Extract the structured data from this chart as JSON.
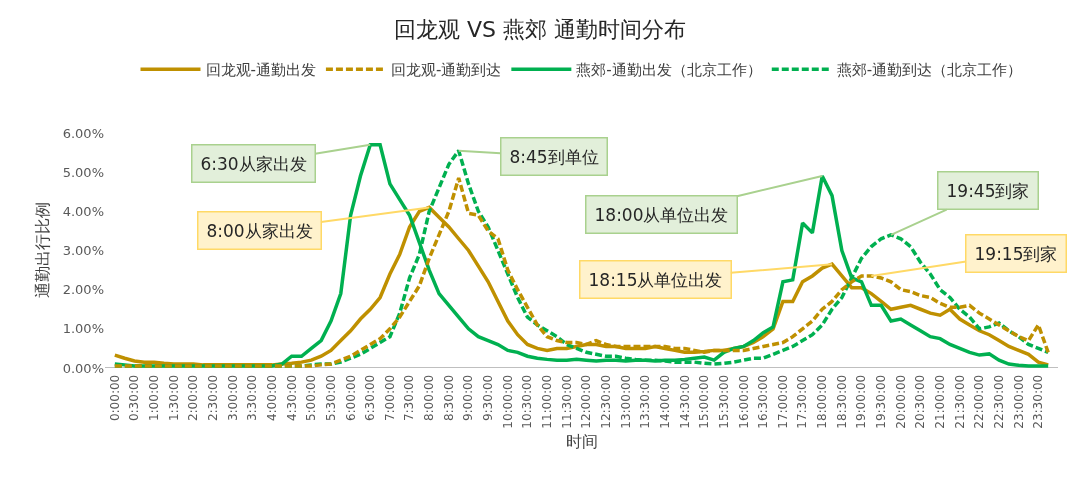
{
  "chart_data": {
    "type": "line",
    "title": "回龙观 VS 燕郊 通勤时间分布",
    "xlabel": "时间",
    "ylabel": "通勤出行比例",
    "x": [
      0,
      0.25,
      0.5,
      0.75,
      1,
      1.25,
      1.5,
      1.75,
      2,
      2.25,
      2.5,
      2.75,
      3,
      3.25,
      3.5,
      3.75,
      4,
      4.25,
      4.5,
      4.75,
      5,
      5.25,
      5.5,
      5.75,
      6,
      6.25,
      6.5,
      6.75,
      7,
      7.25,
      7.5,
      7.75,
      8,
      8.25,
      8.5,
      8.75,
      9,
      9.25,
      9.5,
      9.75,
      10,
      10.25,
      10.5,
      10.75,
      11,
      11.25,
      11.5,
      11.75,
      12,
      12.25,
      12.5,
      12.75,
      13,
      13.25,
      13.5,
      13.75,
      14,
      14.25,
      14.5,
      14.75,
      15,
      15.25,
      15.5,
      15.75,
      16,
      16.25,
      16.5,
      16.75,
      17,
      17.25,
      17.5,
      17.75,
      18,
      18.25,
      18.5,
      18.75,
      19,
      19.25,
      19.5,
      19.75,
      20,
      20.25,
      20.5,
      20.75,
      21,
      21.25,
      21.5,
      21.75,
      22,
      22.25,
      22.5,
      22.75,
      23,
      23.25,
      23.5,
      23.75
    ],
    "series": [
      {
        "name": "回龙观-通勤出发",
        "color": "#bf9000",
        "line_style": "solid",
        "values": [
          0.33,
          0.25,
          0.18,
          0.15,
          0.15,
          0.12,
          0.1,
          0.1,
          0.1,
          0.08,
          0.08,
          0.08,
          0.08,
          0.08,
          0.08,
          0.08,
          0.08,
          0.1,
          0.12,
          0.15,
          0.2,
          0.3,
          0.45,
          0.7,
          0.95,
          1.25,
          1.5,
          1.8,
          2.4,
          2.9,
          3.6,
          4.0,
          4.1,
          3.85,
          3.6,
          3.3,
          3.0,
          2.6,
          2.2,
          1.7,
          1.2,
          0.85,
          0.6,
          0.5,
          0.45,
          0.5,
          0.5,
          0.55,
          0.6,
          0.6,
          0.55,
          0.55,
          0.5,
          0.5,
          0.5,
          0.55,
          0.5,
          0.45,
          0.4,
          0.4,
          0.42,
          0.45,
          0.45,
          0.5,
          0.55,
          0.65,
          0.8,
          1.0,
          1.7,
          1.7,
          2.2,
          2.35,
          2.55,
          2.65,
          2.35,
          2.05,
          2.05,
          1.9,
          1.7,
          1.5,
          1.55,
          1.6,
          1.5,
          1.4,
          1.35,
          1.5,
          1.25,
          1.1,
          0.95,
          0.85,
          0.7,
          0.55,
          0.45,
          0.35,
          0.15,
          0.08
        ]
      },
      {
        "name": "回龙观-通勤到达",
        "color": "#bf9000",
        "line_style": "dashed",
        "values": [
          0.05,
          0.05,
          0.05,
          0.05,
          0.05,
          0.05,
          0.05,
          0.05,
          0.05,
          0.05,
          0.05,
          0.05,
          0.05,
          0.05,
          0.05,
          0.05,
          0.05,
          0.05,
          0.05,
          0.05,
          0.05,
          0.08,
          0.1,
          0.2,
          0.3,
          0.45,
          0.6,
          0.75,
          1.0,
          1.3,
          1.7,
          2.1,
          2.8,
          3.4,
          4.0,
          4.85,
          3.95,
          3.9,
          3.5,
          3.3,
          2.5,
          2.0,
          1.55,
          1.1,
          0.8,
          0.7,
          0.65,
          0.65,
          0.6,
          0.7,
          0.6,
          0.55,
          0.55,
          0.55,
          0.55,
          0.55,
          0.55,
          0.5,
          0.5,
          0.45,
          0.4,
          0.45,
          0.45,
          0.45,
          0.45,
          0.5,
          0.55,
          0.6,
          0.65,
          0.8,
          1.0,
          1.2,
          1.5,
          1.7,
          2.0,
          2.2,
          2.35,
          2.35,
          2.3,
          2.2,
          2.0,
          1.95,
          1.85,
          1.8,
          1.65,
          1.55,
          1.55,
          1.6,
          1.4,
          1.25,
          1.1,
          0.95,
          0.8,
          0.7,
          1.1,
          0.4
        ]
      },
      {
        "name": "燕郊-通勤出发（北京工作）",
        "color": "#00b050",
        "line_style": "solid",
        "values": [
          0.1,
          0.08,
          0.05,
          0.05,
          0.05,
          0.05,
          0.05,
          0.05,
          0.05,
          0.05,
          0.05,
          0.05,
          0.05,
          0.05,
          0.05,
          0.05,
          0.05,
          0.1,
          0.3,
          0.3,
          0.5,
          0.7,
          1.2,
          1.9,
          3.9,
          4.9,
          5.7,
          5.7,
          4.7,
          4.3,
          3.9,
          3.2,
          2.5,
          1.9,
          1.6,
          1.3,
          1.0,
          0.8,
          0.7,
          0.6,
          0.45,
          0.4,
          0.3,
          0.25,
          0.22,
          0.2,
          0.2,
          0.22,
          0.2,
          0.18,
          0.2,
          0.2,
          0.18,
          0.2,
          0.2,
          0.18,
          0.2,
          0.2,
          0.22,
          0.25,
          0.28,
          0.2,
          0.4,
          0.5,
          0.55,
          0.7,
          0.9,
          1.05,
          2.2,
          2.25,
          3.7,
          3.45,
          4.9,
          4.4,
          3.0,
          2.3,
          2.2,
          1.6,
          1.6,
          1.2,
          1.25,
          1.1,
          0.95,
          0.8,
          0.75,
          0.6,
          0.5,
          0.4,
          0.33,
          0.36,
          0.2,
          0.1,
          0.07,
          0.05,
          0.05,
          0.05
        ]
      },
      {
        "name": "燕郊-通勤到达（北京工作）",
        "color": "#00b050",
        "line_style": "dashed",
        "values": [
          0.05,
          0.05,
          0.05,
          0.05,
          0.05,
          0.05,
          0.05,
          0.05,
          0.05,
          0.05,
          0.05,
          0.05,
          0.05,
          0.05,
          0.05,
          0.05,
          0.05,
          0.05,
          0.05,
          0.05,
          0.08,
          0.1,
          0.1,
          0.15,
          0.25,
          0.35,
          0.5,
          0.65,
          0.8,
          1.4,
          2.3,
          2.9,
          4.0,
          4.6,
          5.2,
          5.55,
          4.7,
          4.0,
          3.6,
          3.0,
          2.4,
          1.8,
          1.3,
          1.1,
          0.95,
          0.8,
          0.6,
          0.5,
          0.4,
          0.35,
          0.3,
          0.3,
          0.25,
          0.22,
          0.2,
          0.2,
          0.18,
          0.15,
          0.15,
          0.15,
          0.12,
          0.1,
          0.12,
          0.15,
          0.2,
          0.25,
          0.25,
          0.35,
          0.45,
          0.55,
          0.7,
          0.85,
          1.1,
          1.5,
          1.8,
          2.3,
          2.8,
          3.1,
          3.3,
          3.4,
          3.3,
          3.1,
          2.7,
          2.4,
          2.0,
          1.8,
          1.5,
          1.3,
          1.0,
          1.05,
          1.15,
          0.95,
          0.8,
          0.6,
          0.5,
          0.4
        ]
      }
    ],
    "xlim": [
      -0.25,
      24
    ],
    "xticks": [
      {
        "value": 0,
        "label": "0:00:00"
      },
      {
        "value": 0.5,
        "label": "0:30:00"
      },
      {
        "value": 1,
        "label": "1:00:00"
      },
      {
        "value": 1.5,
        "label": "1:30:00"
      },
      {
        "value": 2,
        "label": "2:00:00"
      },
      {
        "value": 2.5,
        "label": "2:30:00"
      },
      {
        "value": 3,
        "label": "3:00:00"
      },
      {
        "value": 3.5,
        "label": "3:30:00"
      },
      {
        "value": 4,
        "label": "4:00:00"
      },
      {
        "value": 4.5,
        "label": "4:30:00"
      },
      {
        "value": 5,
        "label": "5:00:00"
      },
      {
        "value": 5.5,
        "label": "5:30:00"
      },
      {
        "value": 6,
        "label": "6:00:00"
      },
      {
        "value": 6.5,
        "label": "6:30:00"
      },
      {
        "value": 7,
        "label": "7:00:00"
      },
      {
        "value": 7.5,
        "label": "7:30:00"
      },
      {
        "value": 8,
        "label": "8:00:00"
      },
      {
        "value": 8.5,
        "label": "8:30:00"
      },
      {
        "value": 9,
        "label": "9:00:00"
      },
      {
        "value": 9.5,
        "label": "9:30:00"
      },
      {
        "value": 10,
        "label": "10:00:00"
      },
      {
        "value": 10.5,
        "label": "10:30:00"
      },
      {
        "value": 11,
        "label": "11:00:00"
      },
      {
        "value": 11.5,
        "label": "11:30:00"
      },
      {
        "value": 12,
        "label": "12:00:00"
      },
      {
        "value": 12.5,
        "label": "12:30:00"
      },
      {
        "value": 13,
        "label": "13:00:00"
      },
      {
        "value": 13.5,
        "label": "13:30:00"
      },
      {
        "value": 14,
        "label": "14:00:00"
      },
      {
        "value": 14.5,
        "label": "14:30:00"
      },
      {
        "value": 15,
        "label": "15:00:00"
      },
      {
        "value": 15.5,
        "label": "15:30:00"
      },
      {
        "value": 16,
        "label": "16:00:00"
      },
      {
        "value": 16.5,
        "label": "16:30:00"
      },
      {
        "value": 17,
        "label": "17:00:00"
      },
      {
        "value": 17.5,
        "label": "17:30:00"
      },
      {
        "value": 18,
        "label": "18:00:00"
      },
      {
        "value": 18.5,
        "label": "18:30:00"
      },
      {
        "value": 19,
        "label": "19:00:00"
      },
      {
        "value": 19.5,
        "label": "19:30:00"
      },
      {
        "value": 20,
        "label": "20:00:00"
      },
      {
        "value": 20.5,
        "label": "20:30:00"
      },
      {
        "value": 21,
        "label": "21:00:00"
      },
      {
        "value": 21.5,
        "label": "21:30:00"
      },
      {
        "value": 22,
        "label": "22:00:00"
      },
      {
        "value": 22.5,
        "label": "22:30:00"
      },
      {
        "value": 23,
        "label": "23:00:00"
      },
      {
        "value": 23.5,
        "label": "23:30:00"
      }
    ],
    "ylim": [
      0,
      6
    ],
    "yticks": [
      {
        "value": 0,
        "label": "0.00%"
      },
      {
        "value": 1,
        "label": "1.00%"
      },
      {
        "value": 2,
        "label": "2.00%"
      },
      {
        "value": 3,
        "label": "3.00%"
      },
      {
        "value": 4,
        "label": "4.00%"
      },
      {
        "value": 5,
        "label": "5.00%"
      },
      {
        "value": 6,
        "label": "6.00%"
      }
    ],
    "legend": "top",
    "marker": "none",
    "annotations": [
      {
        "text": "6:30从家出发",
        "x": 6.5,
        "y": 5.7
      },
      {
        "text": "8:00从家出发",
        "x": 8,
        "y": 4.1
      },
      {
        "text": "8:45到单位",
        "x": 8.75,
        "y": 5.55
      },
      {
        "text": "18:00从单位出发",
        "x": 18,
        "y": 4.9
      },
      {
        "text": "18:15从单位出发",
        "x": 18.25,
        "y": 2.65
      },
      {
        "text": "19:45到家",
        "x": 19.75,
        "y": 3.4
      },
      {
        "text": "19:15到家",
        "x": 19.25,
        "y": 2.35
      }
    ]
  }
}
